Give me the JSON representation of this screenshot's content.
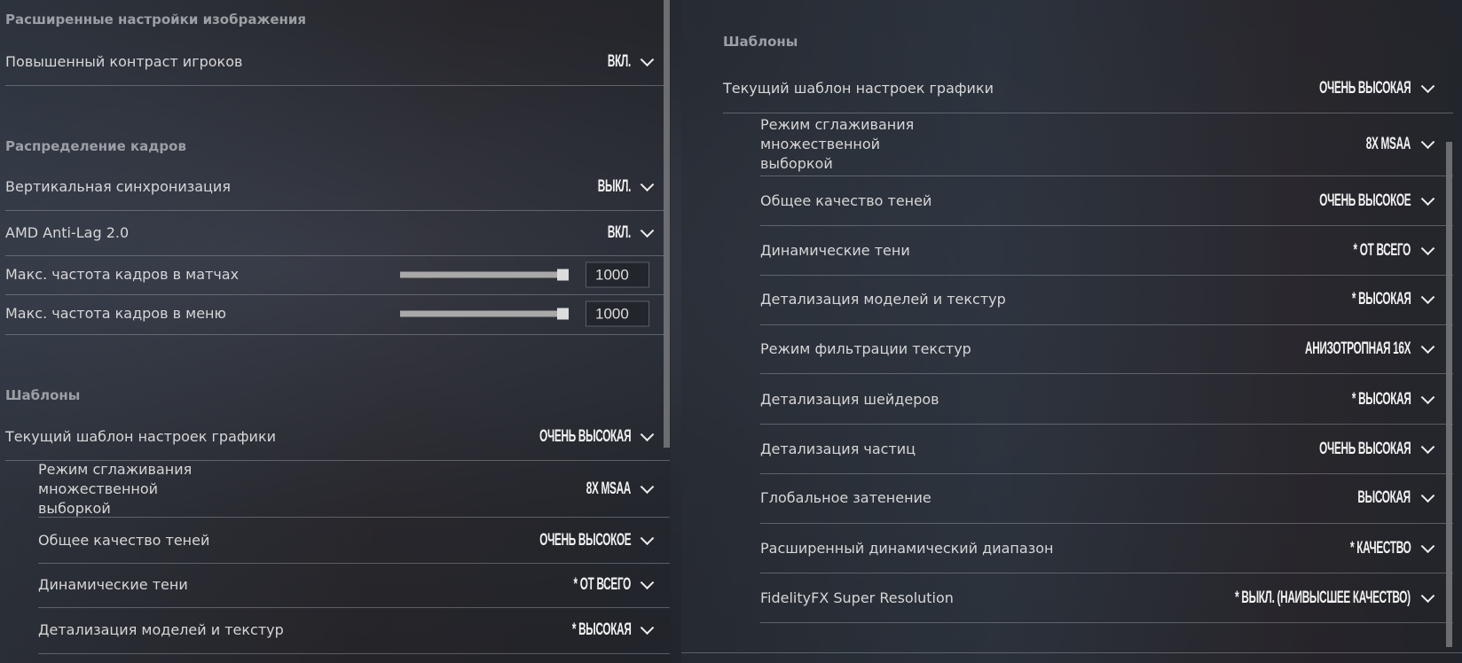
{
  "left": {
    "sections": [
      {
        "heading": "Расширенные настройки изображения",
        "rows": [
          {
            "label": "Повышенный контраст игроков",
            "value": "ВКЛ."
          }
        ]
      },
      {
        "heading": "Распределение кадров",
        "rows": [
          {
            "label": "Вертикальная синхронизация",
            "value": "ВЫКЛ."
          },
          {
            "label": "AMD Anti-Lag 2.0",
            "value": "ВКЛ."
          },
          {
            "label": "Макс. частота кадров в матчах",
            "slider": 1.0,
            "input": "1000"
          },
          {
            "label": "Макс. частота кадров в меню",
            "slider": 1.0,
            "input": "1000"
          }
        ]
      },
      {
        "heading": "Шаблоны",
        "rows": [
          {
            "label": "Текущий шаблон настроек графики",
            "value": "ОЧЕНЬ ВЫСОКАЯ"
          },
          {
            "label": "Режим сглаживания\nмножественной\nвыборкой",
            "value": "8X MSAA",
            "sub": true
          },
          {
            "label": "Общее качество теней",
            "value": "ОЧЕНЬ ВЫСОКОЕ",
            "sub": true
          },
          {
            "label": "Динамические тени",
            "value": "* ОТ ВСЕГО",
            "sub": true
          },
          {
            "label": "Детализация моделей и текстур",
            "value": "* ВЫСОКАЯ",
            "sub": true
          }
        ]
      }
    ]
  },
  "right": {
    "heading": "Шаблоны",
    "rows": [
      {
        "label": "Текущий шаблон настроек графики",
        "value": "ОЧЕНЬ ВЫСОКАЯ"
      },
      {
        "label": "Режим сглаживания\nмножественной\nвыборкой",
        "value": "8X MSAA",
        "sub": true
      },
      {
        "label": "Общее качество теней",
        "value": "ОЧЕНЬ ВЫСОКОЕ",
        "sub": true
      },
      {
        "label": "Динамические тени",
        "value": "* ОТ ВСЕГО",
        "sub": true
      },
      {
        "label": "Детализация моделей и текстур",
        "value": "* ВЫСОКАЯ",
        "sub": true
      },
      {
        "label": "Режим фильтрации текстур",
        "value": "АНИЗОТРОПНАЯ 16X",
        "sub": true
      },
      {
        "label": "Детализация шейдеров",
        "value": "* ВЫСОКАЯ",
        "sub": true
      },
      {
        "label": "Детализация частиц",
        "value": "ОЧЕНЬ ВЫСОКАЯ",
        "sub": true
      },
      {
        "label": "Глобальное затенение",
        "value": "ВЫСОКАЯ",
        "sub": true
      },
      {
        "label": "Расширенный динамический диапазон",
        "value": "* КАЧЕСТВО",
        "sub": true
      },
      {
        "label": "FidelityFX Super Resolution",
        "value": "* ВЫКЛ. (НАИВЫСШЕЕ КАЧЕСТВО)",
        "sub": true
      }
    ]
  }
}
